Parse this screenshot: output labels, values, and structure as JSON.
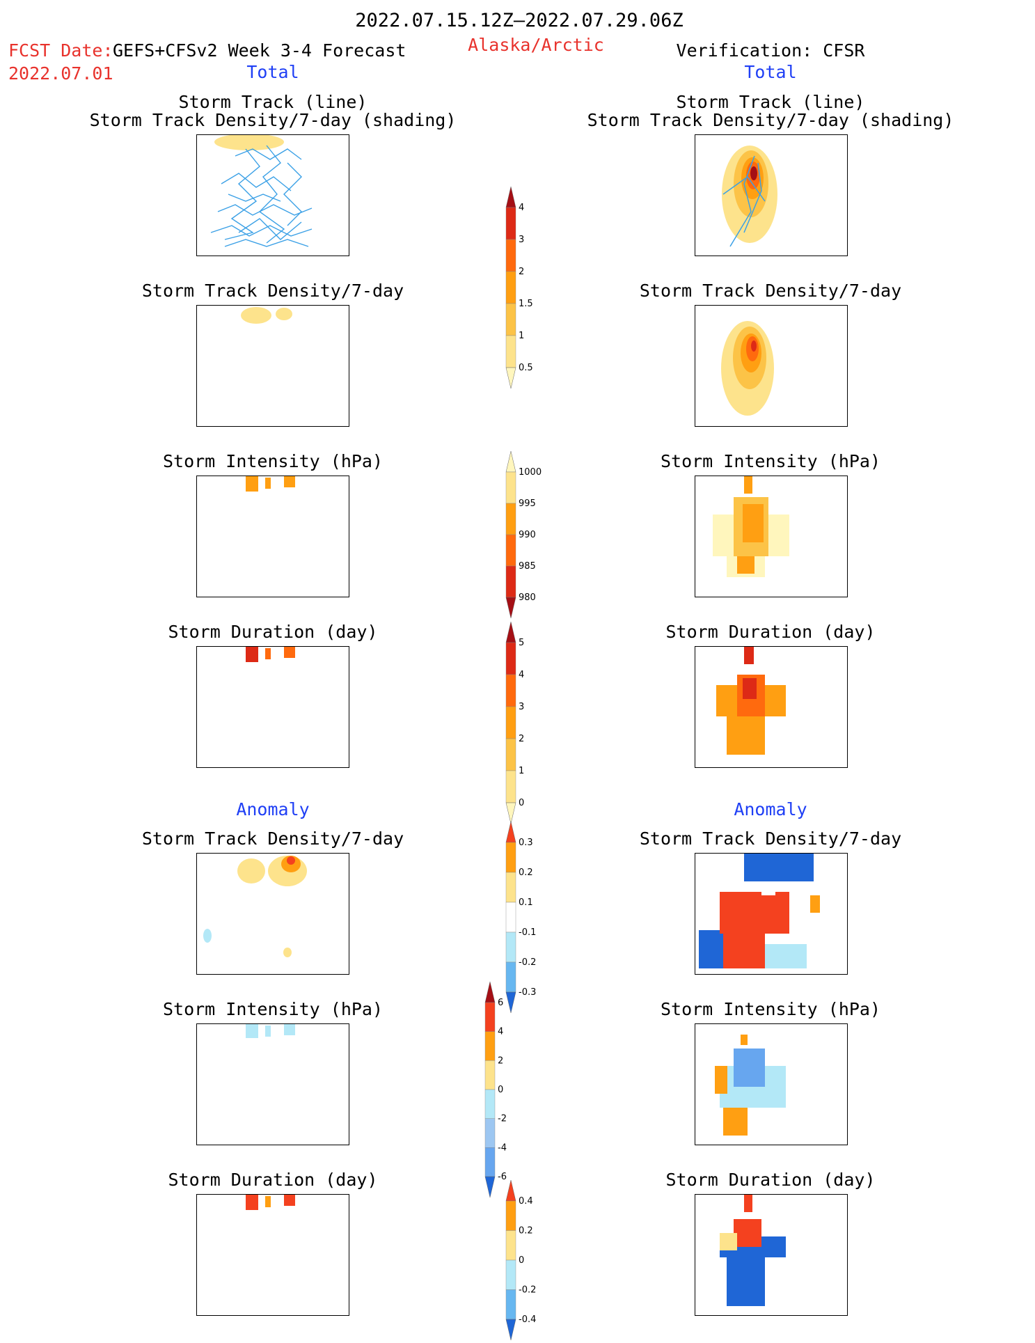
{
  "header": {
    "period": "2022.07.15.12Z–2022.07.29.06Z",
    "fcst_label": "FCST Date:",
    "model": "GEFS+CFSv2 Week 3-4 Forecast",
    "region": "Alaska/Arctic",
    "fcst_date": "2022.07.01",
    "verification": "Verification: CFSR"
  },
  "left_column": {
    "total_label": "Total",
    "anomaly_label": "Anomaly",
    "panels": [
      {
        "title1": "Storm Track (line)",
        "title2": "Storm Track Density/7-day (shading)"
      },
      {
        "title1": "Storm Track Density/7-day"
      },
      {
        "title1": "Storm Intensity (hPa)"
      },
      {
        "title1": "Storm Duration (day)"
      },
      {
        "title1": "Storm Track Density/7-day"
      },
      {
        "title1": "Storm Intensity (hPa)"
      },
      {
        "title1": "Storm Duration (day)"
      }
    ]
  },
  "right_column": {
    "total_label": "Total",
    "anomaly_label": "Anomaly",
    "panels": [
      {
        "title1": "Storm Track (line)",
        "title2": "Storm Track Density/7-day (shading)"
      },
      {
        "title1": "Storm Track Density/7-day"
      },
      {
        "title1": "Storm Intensity (hPa)"
      },
      {
        "title1": "Storm Duration (day)"
      },
      {
        "title1": "Storm Track Density/7-day"
      },
      {
        "title1": "Storm Intensity (hPa)"
      },
      {
        "title1": "Storm Duration (day)"
      }
    ]
  },
  "colorbars": [
    {
      "name": "track-density-total",
      "labels": [
        "4",
        "3",
        "2",
        "1.5",
        "1",
        "0.5"
      ],
      "colors": [
        "#a50f15",
        "#dd2a16",
        "#ff6a0e",
        "#ff9f12",
        "#fcc347",
        "#fde38c",
        "#fff6bd"
      ]
    },
    {
      "name": "intensity-total",
      "labels": [
        "1000",
        "995",
        "990",
        "985",
        "980"
      ],
      "colors": [
        "#fff6bd",
        "#fde38c",
        "#ff9f12",
        "#ff6a0e",
        "#dd2a16",
        "#a50f15"
      ]
    },
    {
      "name": "duration-total",
      "labels": [
        "5",
        "4",
        "3",
        "2",
        "1",
        "0"
      ],
      "colors": [
        "#a50f15",
        "#dd2a16",
        "#ff6a0e",
        "#ff9f12",
        "#fcc347",
        "#fde38c",
        "#fff6bd"
      ]
    },
    {
      "name": "track-density-anomaly",
      "labels": [
        "0.3",
        "0.2",
        "0.1",
        "-0.1",
        "-0.2",
        "-0.3"
      ],
      "colors": [
        "#f4411f",
        "#ff9f12",
        "#fde38c",
        "#ffffff",
        "#b3e8f7",
        "#67b7f0",
        "#1f66d6"
      ]
    },
    {
      "name": "intensity-anomaly",
      "labels": [
        "6",
        "4",
        "2",
        "0",
        "-2",
        "-4",
        "-6"
      ],
      "colors": [
        "#a50f15",
        "#f4411f",
        "#ff9f12",
        "#fde38c",
        "#b3e8f7",
        "#9dc7f2",
        "#67a6ef",
        "#1f66d6"
      ]
    },
    {
      "name": "duration-anomaly",
      "labels": [
        "0.4",
        "0.2",
        "0",
        "-0.2",
        "-0.4"
      ],
      "colors": [
        "#f4411f",
        "#ff9f12",
        "#fde38c",
        "#b3e8f7",
        "#67b7f0",
        "#1f66d6"
      ]
    }
  ]
}
